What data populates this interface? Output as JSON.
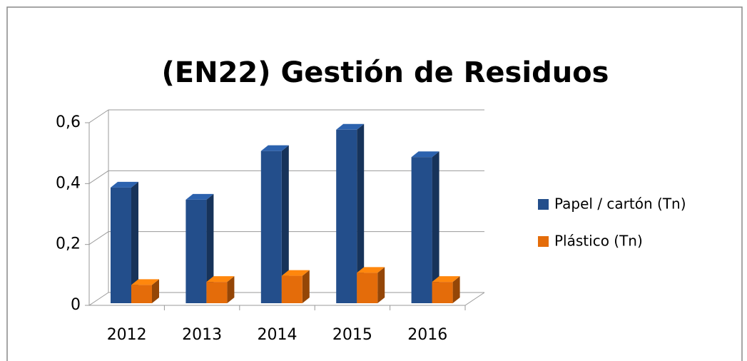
{
  "chart_data": {
    "type": "bar3d",
    "title": "(EN22) Gestión de Residuos",
    "categories": [
      "2012",
      "2013",
      "2014",
      "2015",
      "2016"
    ],
    "series": [
      {
        "name": "Papel / cartón (Tn)",
        "color": "#234e8b",
        "values": [
          0.38,
          0.34,
          0.5,
          0.57,
          0.48
        ]
      },
      {
        "name": "Plástico (Tn)",
        "color": "#e46c0a",
        "values": [
          0.06,
          0.07,
          0.09,
          0.1,
          0.07
        ]
      }
    ],
    "ylim": [
      0,
      0.6
    ],
    "yticks": [
      0,
      {
        "value": 0.2,
        "label": "0,2"
      },
      {
        "value": 0.4,
        "label": "0,4"
      },
      {
        "value": 0.6,
        "label": "0,6"
      }
    ],
    "grid": true,
    "legend": "right"
  }
}
